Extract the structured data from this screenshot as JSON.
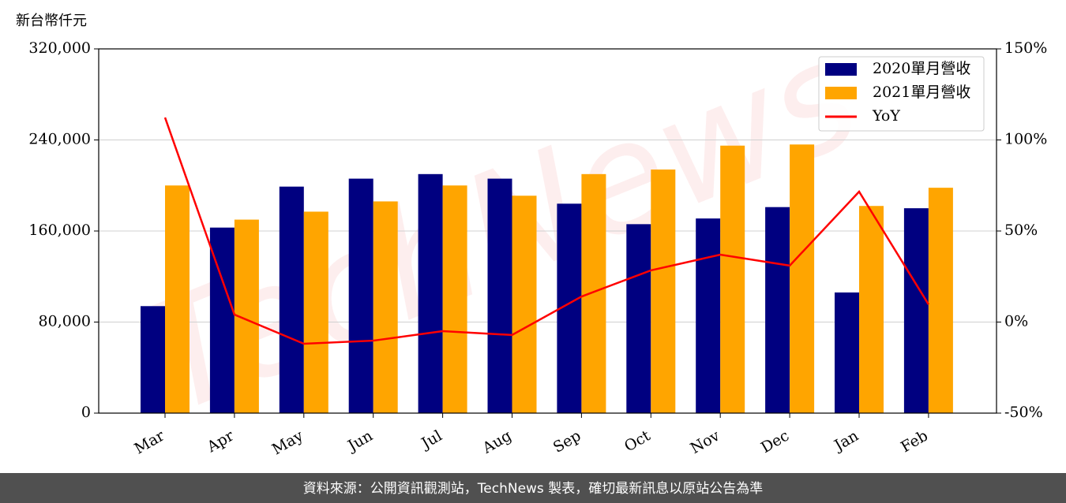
{
  "chart_data": {
    "type": "bar",
    "unit_label": "新台幣仟元",
    "watermark": "TechNews",
    "source": "資料來源：公開資訊觀測站，TechNews 製表，確切最新訊息以原站公告為準",
    "categories": [
      "Mar",
      "Apr",
      "May",
      "Jun",
      "Jul",
      "Aug",
      "Sep",
      "Oct",
      "Nov",
      "Dec",
      "Jan",
      "Feb"
    ],
    "series": [
      {
        "name": "2020單月營收",
        "color": "#000080",
        "type": "bar",
        "values": [
          94000,
          163000,
          199000,
          206000,
          210000,
          206000,
          184000,
          166000,
          171000,
          181000,
          106000,
          180000
        ]
      },
      {
        "name": "2021單月營收",
        "color": "#ffa500",
        "type": "bar",
        "values": [
          200000,
          170000,
          177000,
          186000,
          200000,
          191000,
          210000,
          214000,
          235000,
          236000,
          182000,
          198000
        ]
      },
      {
        "name": "YoY",
        "color": "#ff0000",
        "type": "line",
        "axis": "y2",
        "values": [
          112.3,
          4.1,
          -11.9,
          -10.2,
          -5,
          -7.1,
          14,
          28.4,
          37,
          31,
          71.6,
          9.7
        ]
      }
    ],
    "ylim": [
      0,
      320000
    ],
    "yticks": [
      0,
      {
        "value": 80000,
        "label": "80,000"
      },
      {
        "value": 160000,
        "label": "160,000"
      },
      {
        "value": 240000,
        "label": "240,000"
      },
      {
        "value": 320000,
        "label": "320,000"
      }
    ],
    "y2lim": [
      -50,
      150
    ],
    "y2ticks": [
      {
        "value": -50,
        "label": "-50%"
      },
      {
        "value": 0,
        "label": "0%"
      },
      {
        "value": 50,
        "label": "50%"
      },
      {
        "value": 100,
        "label": "100%"
      },
      {
        "value": 150,
        "label": "150%"
      }
    ],
    "grid": true,
    "legend": "upper right"
  }
}
